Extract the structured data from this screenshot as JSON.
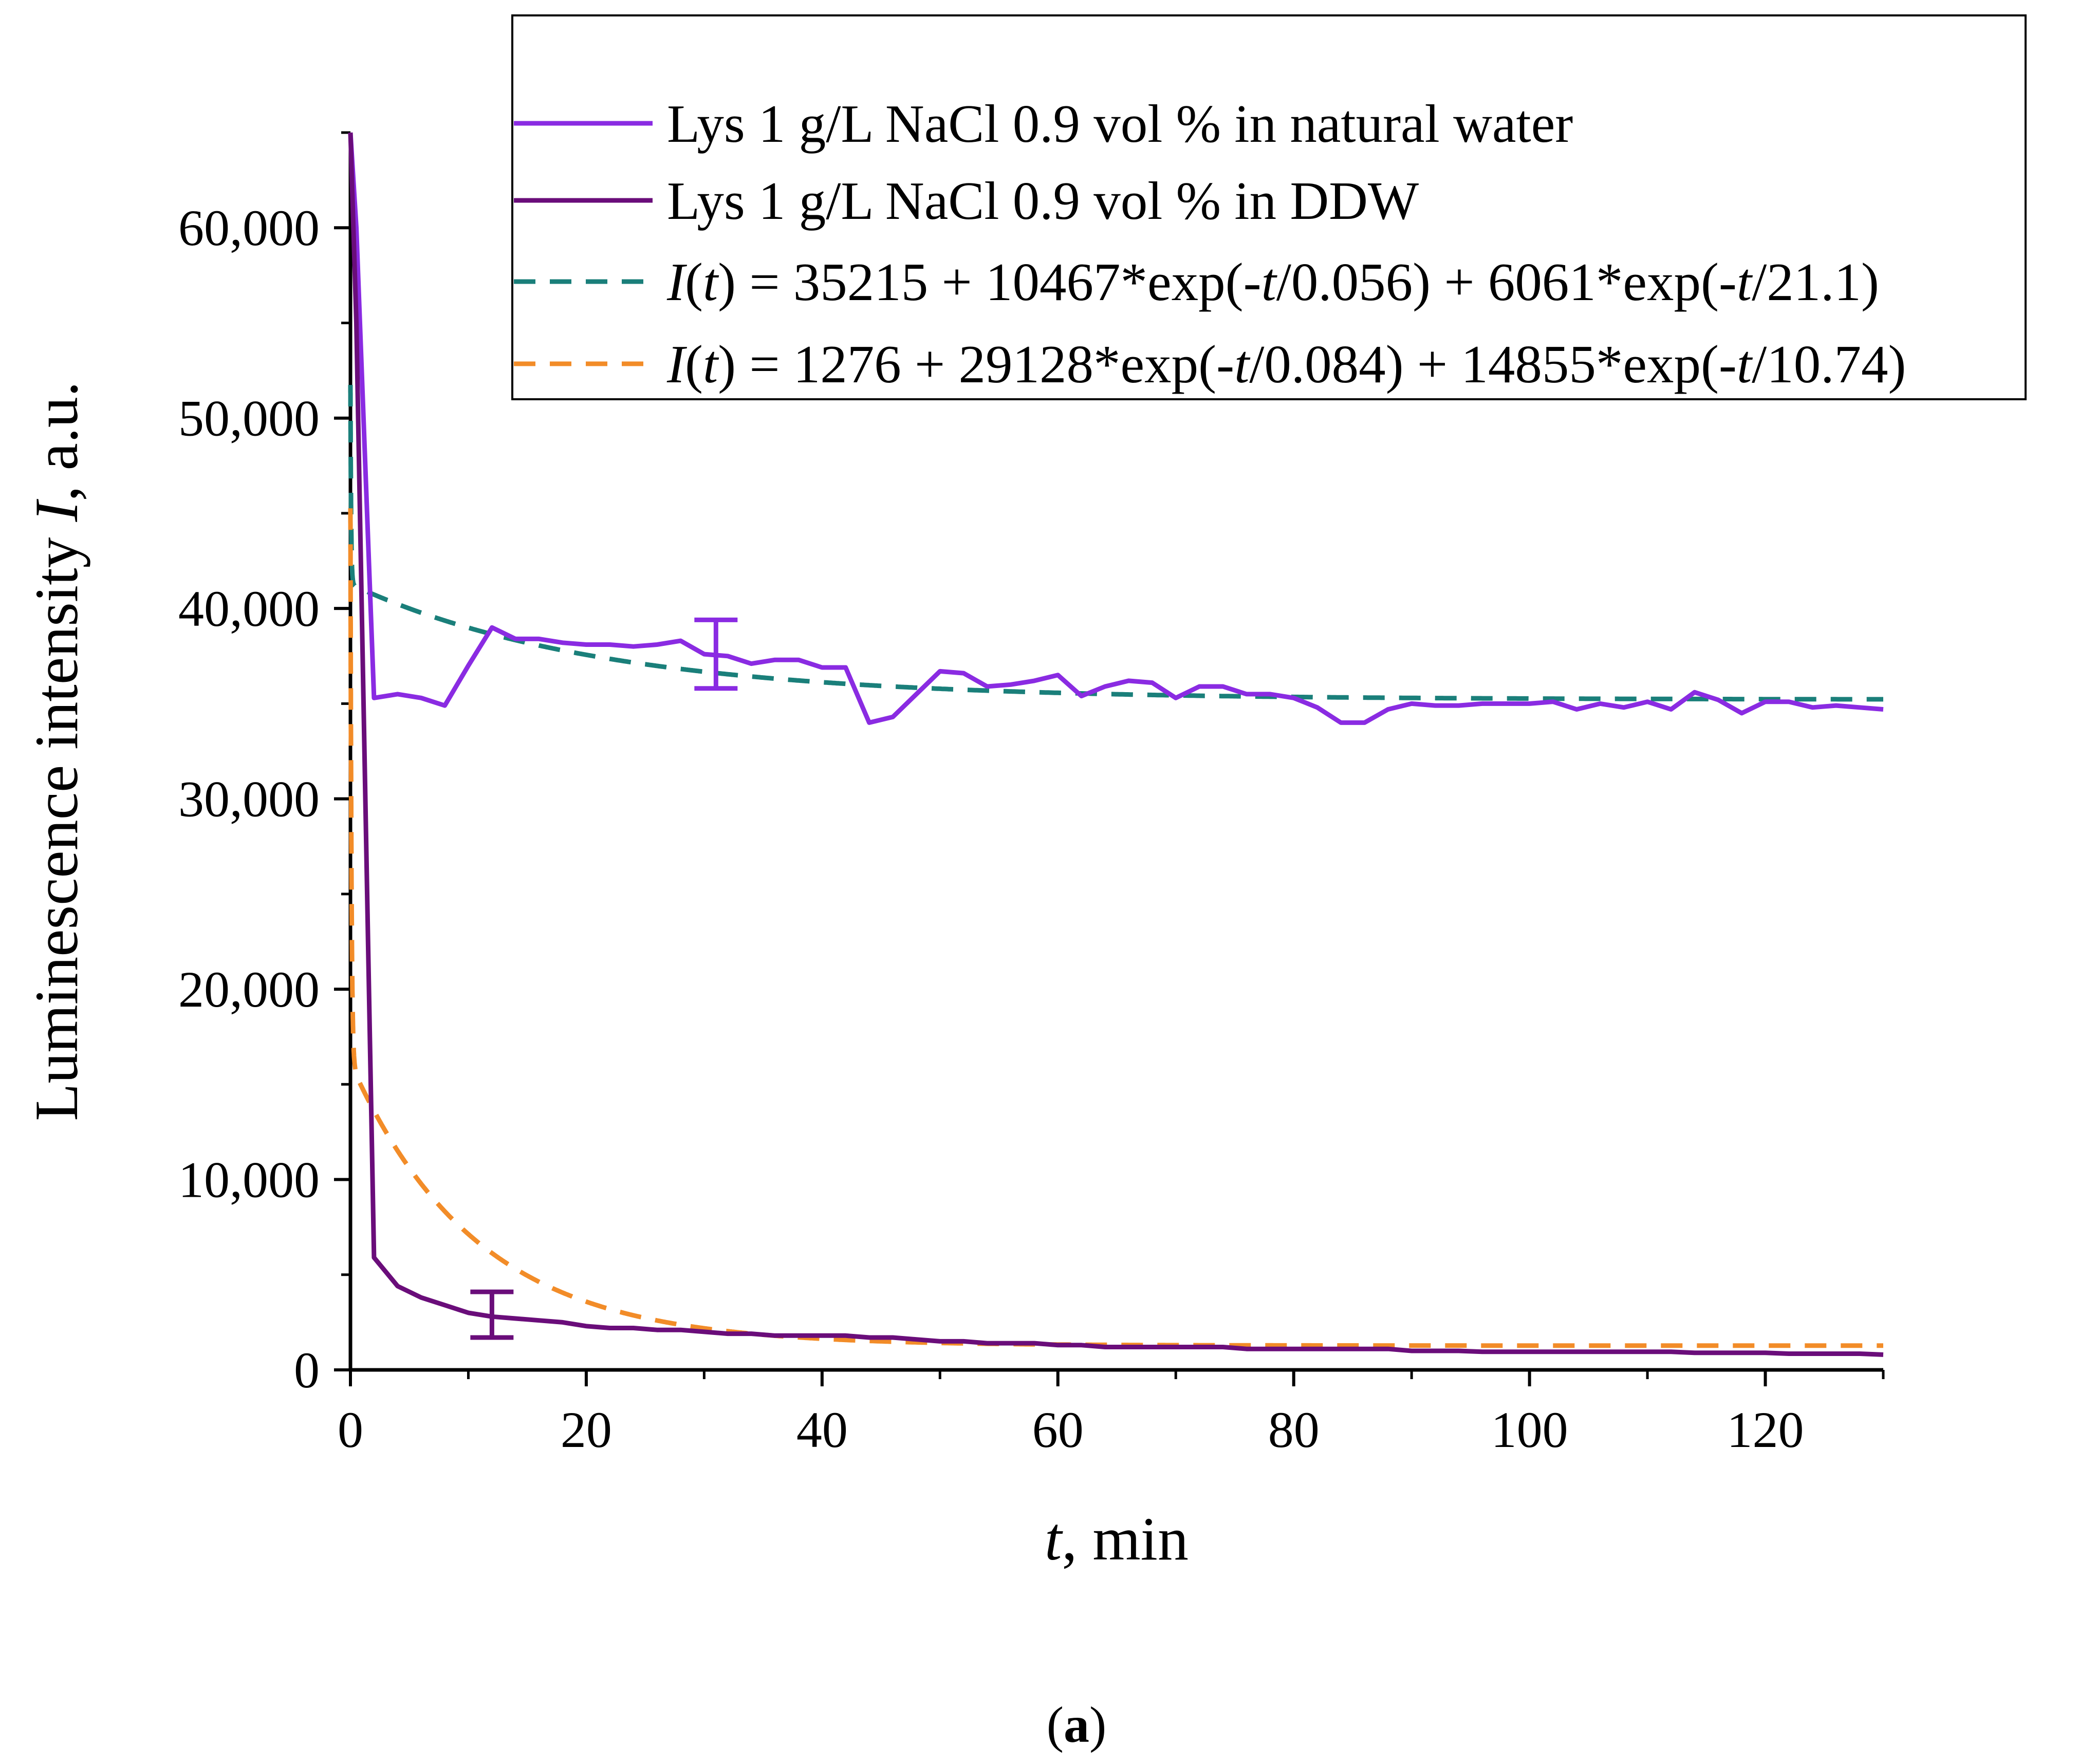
{
  "chart_data": {
    "type": "line",
    "x": [
      0.5,
      2,
      4,
      6,
      8,
      10,
      12,
      14,
      16,
      18,
      20,
      22,
      24,
      26,
      28,
      30,
      32,
      34,
      36,
      38,
      40,
      42,
      44,
      46,
      48,
      50,
      52,
      54,
      56,
      58,
      60,
      62,
      64,
      66,
      68,
      70,
      72,
      74,
      76,
      78,
      80,
      82,
      84,
      86,
      88,
      90,
      92,
      94,
      96,
      98,
      100,
      102,
      104,
      106,
      108,
      110,
      112,
      114,
      116,
      118,
      120,
      122,
      124,
      126,
      128,
      130
    ],
    "series": [
      {
        "name": "Lys 1 g/L NaCl 0.9 vol % in natural water",
        "color": "#8a2be2",
        "style": "solid",
        "start": [
          0,
          65000
        ],
        "values": [
          60000,
          35300,
          35500,
          35300,
          34900,
          37000,
          39000,
          38400,
          38400,
          38200,
          38100,
          38100,
          38000,
          38100,
          38300,
          37600,
          37500,
          37100,
          37300,
          37300,
          36900,
          36900,
          34000,
          34300,
          35500,
          36700,
          36600,
          35900,
          36000,
          36200,
          36500,
          35400,
          35900,
          36200,
          36100,
          35300,
          35900,
          35900,
          35500,
          35500,
          35300,
          34800,
          34000,
          34000,
          34700,
          35000,
          34900,
          34900,
          35000,
          35000,
          35000,
          35100,
          34700,
          35000,
          34800,
          35100,
          34700,
          35600,
          35200,
          34500,
          35100,
          35100,
          34800,
          34900,
          34800,
          34700
        ]
      },
      {
        "name": "Lys 1 g/L NaCl 0.9 vol % in DDW",
        "color": "#6a0d7a",
        "style": "solid",
        "start": [
          0,
          65000
        ],
        "values": [
          55000,
          5900,
          4400,
          3800,
          3400,
          3000,
          2800,
          2700,
          2600,
          2500,
          2300,
          2200,
          2200,
          2100,
          2100,
          2000,
          1900,
          1900,
          1800,
          1800,
          1800,
          1800,
          1700,
          1700,
          1600,
          1500,
          1500,
          1400,
          1400,
          1400,
          1300,
          1300,
          1200,
          1200,
          1200,
          1200,
          1200,
          1200,
          1100,
          1100,
          1100,
          1100,
          1100,
          1100,
          1100,
          1000,
          1000,
          1000,
          950,
          950,
          950,
          950,
          950,
          950,
          950,
          950,
          950,
          900,
          900,
          900,
          900,
          850,
          850,
          850,
          850,
          800
        ]
      }
    ],
    "fits": [
      {
        "name": "I(t) = 35215 + 10467*exp(-t/0.056) + 6061*exp(-t/21.1)",
        "color": "#1a7f7a",
        "style": "dashed",
        "y0": 35215,
        "a1": 10467,
        "tau1": 0.056,
        "a2": 6061,
        "tau2": 21.1
      },
      {
        "name": "I(t) = 1276 + 29128*exp(-t/0.084) + 14855*exp(-t/10.74)",
        "color": "#f28c28",
        "style": "dashed",
        "y0": 1276,
        "a1": 29128,
        "tau1": 0.084,
        "a2": 14855,
        "tau2": 10.74
      }
    ],
    "error_bars": [
      {
        "series": "Lys 1 g/L NaCl 0.9 vol % in natural water",
        "x": 31,
        "y": 37600,
        "low": 35800,
        "high": 39400
      },
      {
        "series": "Lys 1 g/L NaCl 0.9 vol % in DDW",
        "x": 12,
        "y": 2900,
        "low": 1700,
        "high": 4100
      }
    ],
    "xlim": [
      0,
      130
    ],
    "ylim": [
      0,
      65000
    ],
    "xticks": [
      0,
      20,
      40,
      60,
      80,
      100,
      120
    ],
    "yticks": [
      0,
      10000,
      20000,
      30000,
      40000,
      50000,
      60000
    ],
    "xtick_labels": [
      "0",
      "20",
      "40",
      "60",
      "80",
      "100",
      "120"
    ],
    "ytick_labels": [
      "0",
      "10,000",
      "20,000",
      "30,000",
      "40,000",
      "50,000",
      "60,000"
    ],
    "xlabel": {
      "var": "t",
      "rest": ", min"
    },
    "ylabel": {
      "pre": "Luminescence intensity ",
      "var": "I",
      "rest": ", a.u."
    },
    "legend_position": "top-right",
    "legend": [
      {
        "text": "Lys 1 g/L NaCl 0.9 vol % in natural water"
      },
      {
        "text": "Lys 1 g/L NaCl 0.9 vol % in DDW"
      },
      {
        "var": "I",
        "open": "(",
        "tvar": "t",
        "rest": ") = 35215 + 10467*exp(-",
        "tvar2": "t",
        "rest2": "/0.056) + 6061*exp(-",
        "tvar3": "t",
        "rest3": "/21.1)"
      },
      {
        "var": "I",
        "open": "(",
        "tvar": "t",
        "rest": ") = 1276 + 29128*exp(-",
        "tvar2": "t",
        "rest2": "/0.084) + 14855*exp(-",
        "tvar3": "t",
        "rest3": "/10.74)"
      }
    ],
    "caption": {
      "open": "(",
      "letter": "a",
      "close": ")"
    }
  }
}
